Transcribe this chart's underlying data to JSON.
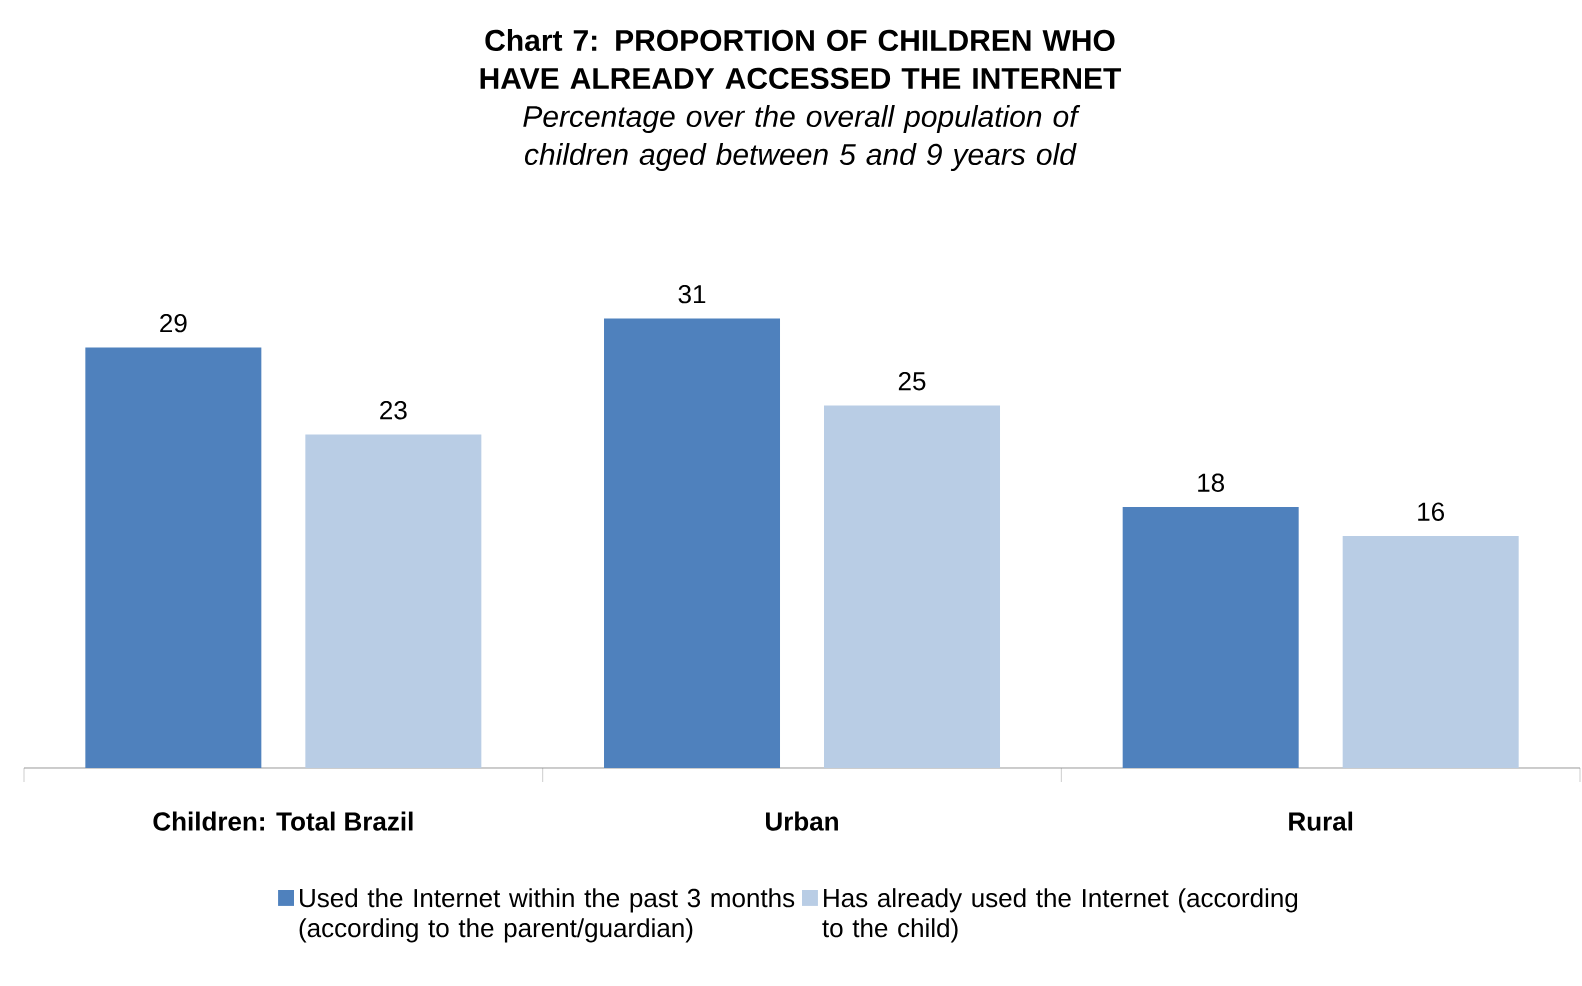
{
  "chart_data": {
    "type": "bar",
    "title": "Chart 7: PROPORTION OF CHILDREN WHO HAVE ALREADY ACCESSED THE INTERNET",
    "subtitle": "Percentage over the overall population of children aged between 5 and 9 years old",
    "categories": [
      "Children: Total Brazil",
      "Urban",
      "Rural"
    ],
    "series": [
      {
        "name": "Used the Internet within the past 3 months (according to the parent/guardian)",
        "color": "#4f81bd",
        "values": [
          29,
          31,
          18
        ]
      },
      {
        "name": "Has already used the Internet (according to the child)",
        "color": "#b9cde5",
        "values": [
          23,
          25,
          16
        ]
      }
    ],
    "data_labels": true,
    "legend": "bottom"
  }
}
